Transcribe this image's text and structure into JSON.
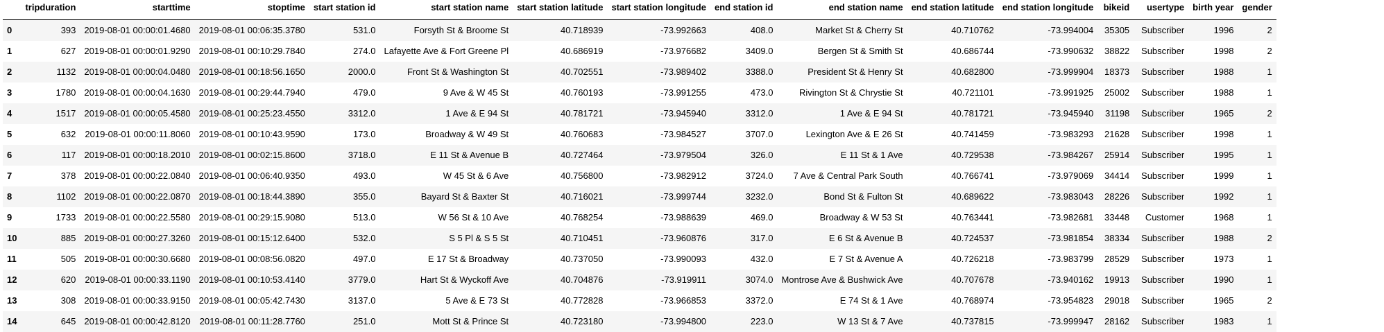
{
  "table": {
    "index_header": "",
    "columns": [
      "tripduration",
      "starttime",
      "stoptime",
      "start station id",
      "start station name",
      "start station latitude",
      "start station longitude",
      "end station id",
      "end station name",
      "end station latitude",
      "end station longitude",
      "bikeid",
      "usertype",
      "birth year",
      "gender"
    ],
    "rows": [
      {
        "index": "0",
        "cells": [
          "393",
          "2019-08-01 00:00:01.4680",
          "2019-08-01 00:06:35.3780",
          "531.0",
          "Forsyth St & Broome St",
          "40.718939",
          "-73.992663",
          "408.0",
          "Market St & Cherry St",
          "40.710762",
          "-73.994004",
          "35305",
          "Subscriber",
          "1996",
          "2"
        ]
      },
      {
        "index": "1",
        "cells": [
          "627",
          "2019-08-01 00:00:01.9290",
          "2019-08-01 00:10:29.7840",
          "274.0",
          "Lafayette Ave & Fort Greene Pl",
          "40.686919",
          "-73.976682",
          "3409.0",
          "Bergen St & Smith St",
          "40.686744",
          "-73.990632",
          "38822",
          "Subscriber",
          "1998",
          "2"
        ]
      },
      {
        "index": "2",
        "cells": [
          "1132",
          "2019-08-01 00:00:04.0480",
          "2019-08-01 00:18:56.1650",
          "2000.0",
          "Front St & Washington St",
          "40.702551",
          "-73.989402",
          "3388.0",
          "President St & Henry St",
          "40.682800",
          "-73.999904",
          "18373",
          "Subscriber",
          "1988",
          "1"
        ]
      },
      {
        "index": "3",
        "cells": [
          "1780",
          "2019-08-01 00:00:04.1630",
          "2019-08-01 00:29:44.7940",
          "479.0",
          "9 Ave & W 45 St",
          "40.760193",
          "-73.991255",
          "473.0",
          "Rivington St & Chrystie St",
          "40.721101",
          "-73.991925",
          "25002",
          "Subscriber",
          "1988",
          "1"
        ]
      },
      {
        "index": "4",
        "cells": [
          "1517",
          "2019-08-01 00:00:05.4580",
          "2019-08-01 00:25:23.4550",
          "3312.0",
          "1 Ave & E 94 St",
          "40.781721",
          "-73.945940",
          "3312.0",
          "1 Ave & E 94 St",
          "40.781721",
          "-73.945940",
          "31198",
          "Subscriber",
          "1965",
          "2"
        ]
      },
      {
        "index": "5",
        "cells": [
          "632",
          "2019-08-01 00:00:11.8060",
          "2019-08-01 00:10:43.9590",
          "173.0",
          "Broadway & W 49 St",
          "40.760683",
          "-73.984527",
          "3707.0",
          "Lexington Ave & E 26 St",
          "40.741459",
          "-73.983293",
          "21628",
          "Subscriber",
          "1998",
          "1"
        ]
      },
      {
        "index": "6",
        "cells": [
          "117",
          "2019-08-01 00:00:18.2010",
          "2019-08-01 00:02:15.8600",
          "3718.0",
          "E 11 St & Avenue B",
          "40.727464",
          "-73.979504",
          "326.0",
          "E 11 St & 1 Ave",
          "40.729538",
          "-73.984267",
          "25914",
          "Subscriber",
          "1995",
          "1"
        ]
      },
      {
        "index": "7",
        "cells": [
          "378",
          "2019-08-01 00:00:22.0840",
          "2019-08-01 00:06:40.9350",
          "493.0",
          "W 45 St & 6 Ave",
          "40.756800",
          "-73.982912",
          "3724.0",
          "7 Ave & Central Park South",
          "40.766741",
          "-73.979069",
          "34414",
          "Subscriber",
          "1999",
          "1"
        ]
      },
      {
        "index": "8",
        "cells": [
          "1102",
          "2019-08-01 00:00:22.0870",
          "2019-08-01 00:18:44.3890",
          "355.0",
          "Bayard St & Baxter St",
          "40.716021",
          "-73.999744",
          "3232.0",
          "Bond St & Fulton St",
          "40.689622",
          "-73.983043",
          "28226",
          "Subscriber",
          "1992",
          "1"
        ]
      },
      {
        "index": "9",
        "cells": [
          "1733",
          "2019-08-01 00:00:22.5580",
          "2019-08-01 00:29:15.9080",
          "513.0",
          "W 56 St & 10 Ave",
          "40.768254",
          "-73.988639",
          "469.0",
          "Broadway & W 53 St",
          "40.763441",
          "-73.982681",
          "33448",
          "Customer",
          "1968",
          "1"
        ]
      },
      {
        "index": "10",
        "cells": [
          "885",
          "2019-08-01 00:00:27.3260",
          "2019-08-01 00:15:12.6400",
          "532.0",
          "S 5 Pl & S 5 St",
          "40.710451",
          "-73.960876",
          "317.0",
          "E 6 St & Avenue B",
          "40.724537",
          "-73.981854",
          "38334",
          "Subscriber",
          "1988",
          "2"
        ]
      },
      {
        "index": "11",
        "cells": [
          "505",
          "2019-08-01 00:00:30.6680",
          "2019-08-01 00:08:56.0820",
          "497.0",
          "E 17 St & Broadway",
          "40.737050",
          "-73.990093",
          "432.0",
          "E 7 St & Avenue A",
          "40.726218",
          "-73.983799",
          "28529",
          "Subscriber",
          "1973",
          "1"
        ]
      },
      {
        "index": "12",
        "cells": [
          "620",
          "2019-08-01 00:00:33.1190",
          "2019-08-01 00:10:53.4140",
          "3779.0",
          "Hart St & Wyckoff Ave",
          "40.704876",
          "-73.919911",
          "3074.0",
          "Montrose Ave & Bushwick Ave",
          "40.707678",
          "-73.940162",
          "19913",
          "Subscriber",
          "1990",
          "1"
        ]
      },
      {
        "index": "13",
        "cells": [
          "308",
          "2019-08-01 00:00:33.9150",
          "2019-08-01 00:05:42.7430",
          "3137.0",
          "5 Ave & E 73 St",
          "40.772828",
          "-73.966853",
          "3372.0",
          "E 74 St & 1 Ave",
          "40.768974",
          "-73.954823",
          "29018",
          "Subscriber",
          "1965",
          "2"
        ]
      },
      {
        "index": "14",
        "cells": [
          "645",
          "2019-08-01 00:00:42.8120",
          "2019-08-01 00:11:28.7760",
          "251.0",
          "Mott St & Prince St",
          "40.723180",
          "-73.994800",
          "223.0",
          "W 13 St & 7 Ave",
          "40.737815",
          "-73.999947",
          "28162",
          "Subscriber",
          "1983",
          "1"
        ]
      }
    ]
  }
}
